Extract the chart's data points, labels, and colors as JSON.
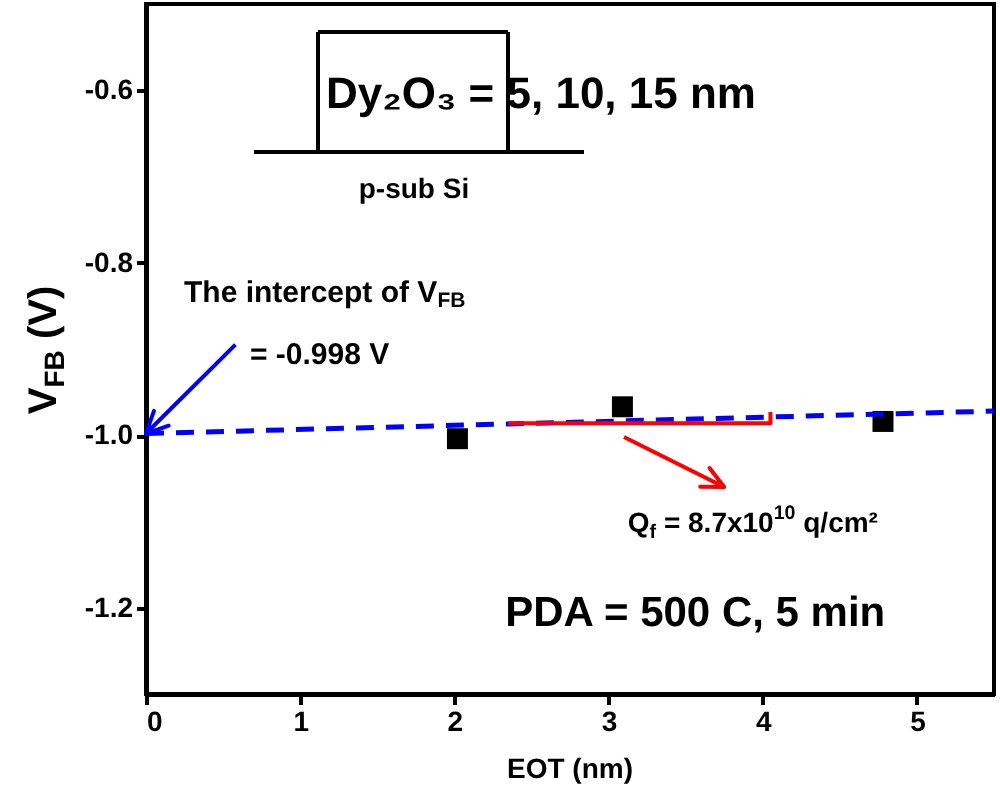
{
  "chart_data": {
    "type": "scatter",
    "xlabel": "EOT (nm)",
    "ylabel": "V$_{FB}$ (V)",
    "xlim": [
      0,
      5.5
    ],
    "xticks": [
      0,
      1,
      2,
      3,
      4,
      5
    ],
    "ylim": [
      -1.3,
      -0.5
    ],
    "yticks": [
      {
        "value": -1.2,
        "label": "-1.2"
      },
      {
        "value": -1.0,
        "label": "-1.0"
      },
      {
        "value": -0.8,
        "label": "-0.8"
      },
      {
        "value": -0.6,
        "label": "-0.6"
      }
    ],
    "grid": false,
    "marker": "square",
    "series": [
      {
        "color": "#000000",
        "x": [
          2.02,
          3.09,
          4.78
        ],
        "values": [
          -1.004,
          -0.967,
          -0.984
        ]
      },
      {
        "type": "line",
        "color": "#0000ff",
        "line_style": "dashed",
        "marker": "none",
        "x": [
          0,
          5.5
        ],
        "values": [
          -0.998,
          -0.972
        ]
      },
      {
        "type": "line",
        "color": "#ff0000",
        "line_style": "solid",
        "marker": "none",
        "x": [
          2.35,
          4.05,
          4.05
        ],
        "values": [
          -0.986,
          -0.986,
          -0.973
        ]
      }
    ],
    "annotations": [
      "The intercept of V$_{FB}$",
      {
        "text": "= -0.998 V",
        "x": 0,
        "y": -0.998
      },
      "Q$_{f}$ = 8.7x10$^{10}$ q/cm²",
      "PDA = 500 C, 5 min",
      "Dy₂O₃ = 5, 10, 15 nm",
      "p-sub Si"
    ]
  }
}
